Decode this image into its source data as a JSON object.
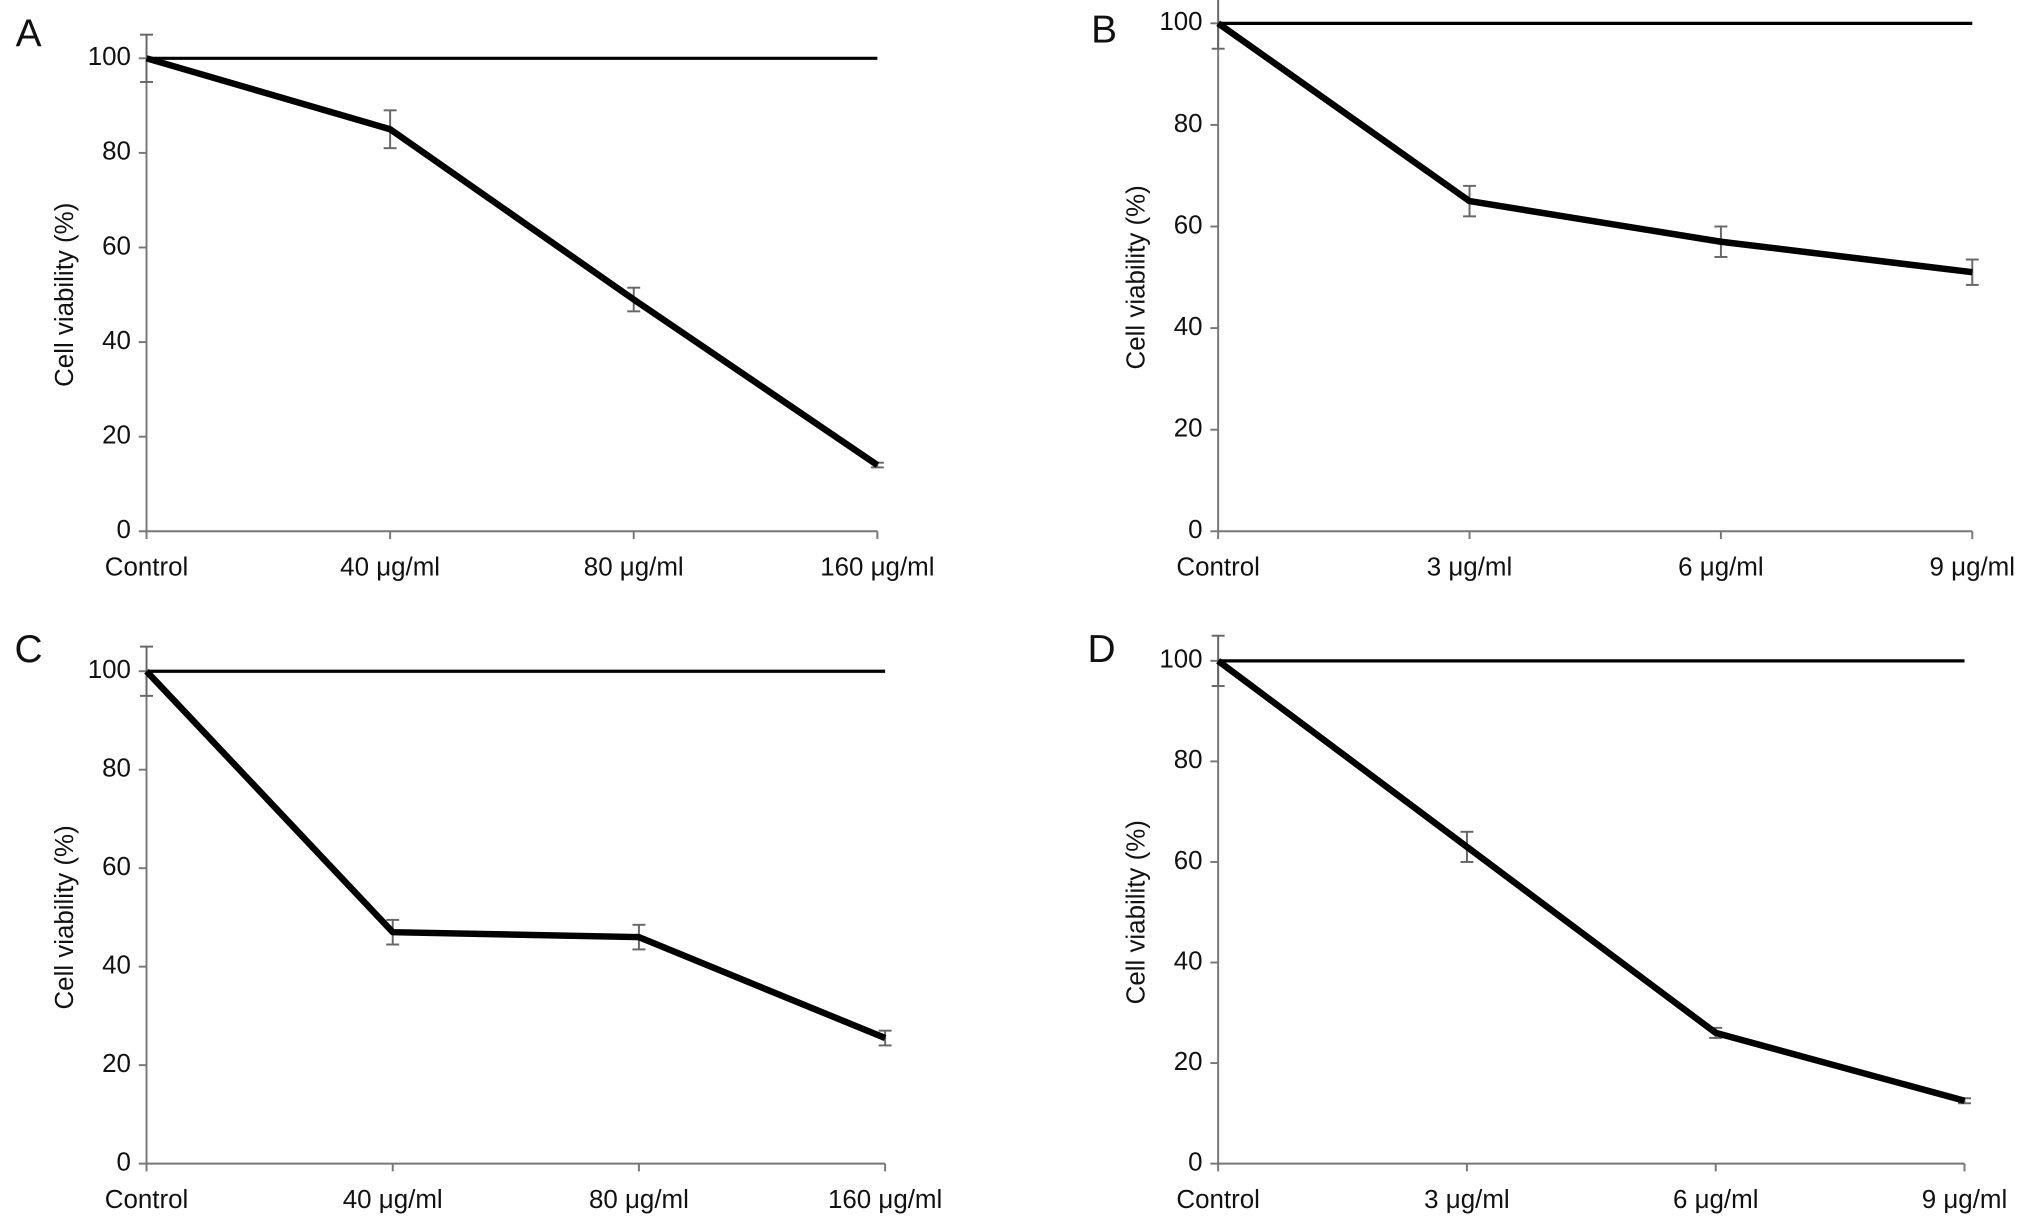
{
  "chart_data": [
    {
      "type": "line",
      "panel": "A",
      "y_label": "Cell viability (%)",
      "categories": [
        "Control",
        "40 μg/ml",
        "80 μg/ml",
        "160 μg/ml"
      ],
      "series": [
        {
          "color": "#000000",
          "values": [
            100,
            100,
            100,
            100
          ]
        },
        {
          "color": "#000000",
          "values": [
            100,
            85,
            49,
            14
          ],
          "errors": [
            5,
            4,
            2.5,
            0.5
          ]
        }
      ],
      "ylim": [
        0,
        100
      ],
      "yticks": [
        0,
        20,
        40,
        60,
        80,
        100
      ]
    },
    {
      "type": "line",
      "panel": "B",
      "y_label": "Cell viability (%)",
      "categories": [
        "Control",
        "3 μg/ml",
        "6 μg/ml",
        "9 μg/ml"
      ],
      "series": [
        {
          "color": "#000000",
          "values": [
            100,
            100,
            100,
            100
          ]
        },
        {
          "color": "#000000",
          "values": [
            100,
            65,
            57,
            51
          ],
          "errors": [
            5,
            3,
            3,
            2.5
          ]
        }
      ],
      "ylim": [
        0,
        100
      ],
      "yticks": [
        0,
        20,
        40,
        60,
        80,
        100
      ]
    },
    {
      "type": "line",
      "panel": "C",
      "y_label": "Cell viability (%)",
      "categories": [
        "Control",
        "40 μg/ml",
        "80 μg/ml",
        "160 μg/ml"
      ],
      "series": [
        {
          "color": "#000000",
          "values": [
            100,
            100,
            100,
            100
          ]
        },
        {
          "color": "#000000",
          "values": [
            100,
            47,
            46,
            25.5
          ],
          "errors": [
            5,
            2.5,
            2.5,
            1.5
          ]
        }
      ],
      "ylim": [
        0,
        100
      ],
      "yticks": [
        0,
        20,
        40,
        60,
        80,
        100
      ]
    },
    {
      "type": "line",
      "panel": "D",
      "y_label": "Cell viability (%)",
      "categories": [
        "Control",
        "3 μg/ml",
        "6 μg/ml",
        "9 μg/ml"
      ],
      "series": [
        {
          "color": "#000000",
          "values": [
            100,
            100,
            100,
            100
          ]
        },
        {
          "color": "#000000",
          "values": [
            100,
            63,
            26,
            12.5
          ],
          "errors": [
            5,
            3,
            1,
            0.5
          ]
        }
      ],
      "ylim": [
        0,
        100
      ],
      "yticks": [
        0,
        20,
        40,
        60,
        80,
        100
      ]
    }
  ]
}
